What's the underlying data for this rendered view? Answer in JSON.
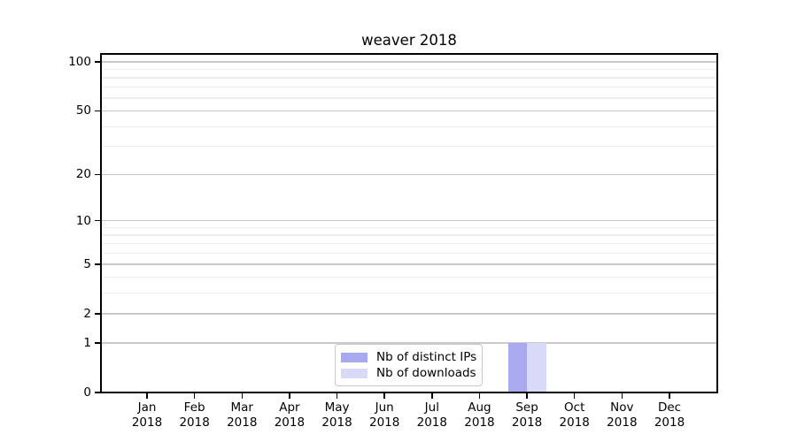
{
  "chart_data": {
    "type": "bar",
    "title": "weaver 2018",
    "categories": [
      "Jan",
      "Feb",
      "Mar",
      "Apr",
      "May",
      "Jun",
      "Jul",
      "Aug",
      "Sep",
      "Oct",
      "Nov",
      "Dec"
    ],
    "category_year_line": "2018",
    "series": [
      {
        "name": "Nb of distinct IPs",
        "color": "#a9a9ef",
        "values": [
          0,
          0,
          0,
          0,
          0,
          0,
          0,
          0,
          1,
          0,
          0,
          0
        ]
      },
      {
        "name": "Nb of downloads",
        "color": "#d9d9f8",
        "values": [
          0,
          0,
          0,
          0,
          0,
          0,
          0,
          0,
          1,
          0,
          0,
          0
        ]
      }
    ],
    "yticks": [
      0,
      1,
      2,
      5,
      10,
      20,
      50,
      100
    ],
    "yscale": "log1p",
    "ylim": [
      0,
      112
    ],
    "xlabel": "",
    "ylabel": "",
    "grid": "both",
    "legend": {
      "position": "lower center",
      "entries": [
        "Nb of distinct IPs",
        "Nb of downloads"
      ]
    },
    "colors": {
      "major_grid": "#c9c9c9",
      "minor_grid": "#ededed",
      "spine": "#000000",
      "background": "#ffffff"
    }
  }
}
